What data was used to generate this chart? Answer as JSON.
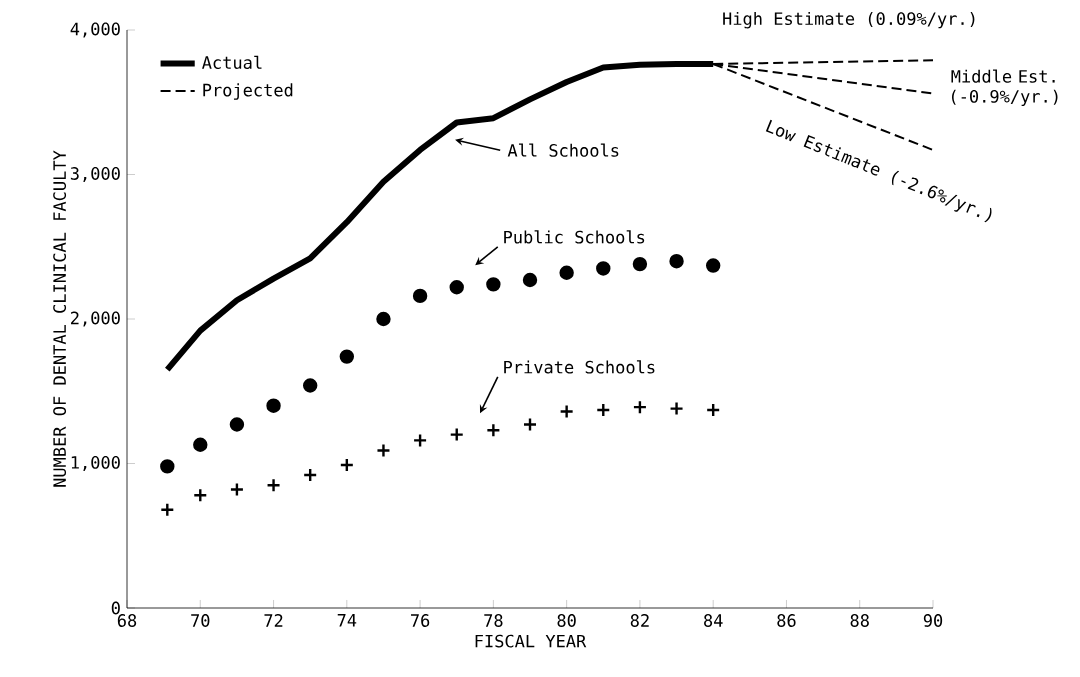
{
  "chart_data": {
    "type": "line",
    "xlabel": "FISCAL YEAR",
    "ylabel": "NUMBER OF DENTAL CLINICAL FACULTY",
    "xlim": [
      68,
      90
    ],
    "ylim": [
      0,
      4000
    ],
    "xticks": [
      68,
      70,
      72,
      74,
      76,
      78,
      80,
      82,
      84,
      86,
      88,
      90
    ],
    "yticks": [
      0,
      {
        "value": 1000,
        "label": "1,000"
      },
      {
        "value": 2000,
        "label": "2,000"
      },
      {
        "value": 3000,
        "label": "3,000"
      },
      {
        "value": 4000,
        "label": "4,000"
      }
    ],
    "legend": "top left",
    "series": [
      {
        "name": "Actual",
        "color": "#000000",
        "line_style": "solid",
        "x": [
          69.1,
          70,
          71,
          72,
          73,
          74,
          75,
          76,
          77,
          78,
          79,
          80,
          81,
          82,
          83,
          84
        ],
        "values": [
          1650,
          1920,
          2130,
          2280,
          2420,
          2670,
          2950,
          3170,
          3360,
          3390,
          3520,
          3640,
          3740,
          3760,
          3765,
          3765
        ]
      },
      {
        "name": "Projected",
        "color": "#000000",
        "line_style": "dashed",
        "x": [
          84,
          90
        ],
        "values": [
          3765,
          3790
        ]
      },
      {
        "color": "#000000",
        "line_style": "dashed",
        "x": [
          84,
          90
        ],
        "values": [
          3765,
          3560
        ]
      },
      {
        "color": "#000000",
        "line_style": "dashed",
        "x": [
          84,
          90
        ],
        "values": [
          3765,
          3170
        ]
      },
      {
        "type": "scatter",
        "marker": "circle",
        "color": "#000000",
        "x": [
          69.1,
          70,
          71,
          72,
          73,
          74,
          75,
          76,
          77,
          78,
          79,
          80,
          81,
          82,
          83,
          84
        ],
        "values": [
          980,
          1130,
          1270,
          1400,
          1540,
          1740,
          2000,
          2160,
          2220,
          2240,
          2270,
          2320,
          2350,
          2380,
          2400,
          2370
        ]
      },
      {
        "type": "scatter",
        "marker": "cross",
        "color": "#000000",
        "x": [
          69.1,
          70,
          71,
          72,
          73,
          74,
          75,
          76,
          77,
          78,
          79,
          80,
          81,
          82,
          83,
          84
        ],
        "values": [
          680,
          780,
          820,
          850,
          920,
          990,
          1090,
          1160,
          1200,
          1230,
          1270,
          1360,
          1370,
          1390,
          1380,
          1370
        ]
      }
    ],
    "annotations": [
      "All Schools",
      "Public Schools",
      "Private Schools",
      "High Estimate (0.09%/yr.)",
      "Middle Est. (-0.9%/yr.)",
      "Low Estimate (-2.6%/yr.)"
    ]
  }
}
